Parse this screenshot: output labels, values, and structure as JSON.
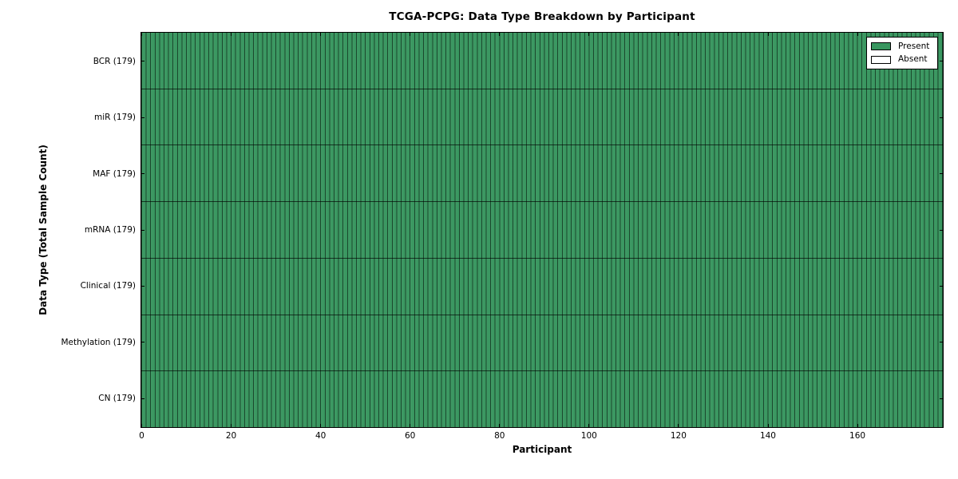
{
  "title": "TCGA-PCPG: Data Type Breakdown by Participant",
  "x_axis": {
    "label": "Participant",
    "ticks": [
      0,
      20,
      40,
      60,
      80,
      100,
      120,
      140,
      160
    ],
    "range": [
      0,
      179
    ]
  },
  "y_axis": {
    "label": "Data Type (Total Sample Count)",
    "categories": [
      "BCR (179)",
      "miR (179)",
      "MAF (179)",
      "mRNA (179)",
      "Clinical (179)",
      "Methylation (179)",
      "CN (179)"
    ]
  },
  "legend": {
    "items": [
      {
        "label": "Present",
        "color": "#38965f"
      },
      {
        "label": "Absent",
        "color": "#ffffff"
      }
    ],
    "position": "upper right"
  },
  "colors": {
    "present": "#38965f",
    "absent": "#ffffff",
    "cell_edge": "#000000",
    "frame": "#000000",
    "background": "#ffffff"
  },
  "chart_data": {
    "type": "heatmap",
    "title": "TCGA-PCPG: Data Type Breakdown by Participant",
    "xlabel": "Participant",
    "ylabel": "Data Type (Total Sample Count)",
    "x_range": [
      0,
      179
    ],
    "x_ticks": [
      0,
      20,
      40,
      60,
      80,
      100,
      120,
      140,
      160
    ],
    "n_participants": 179,
    "grid": "off",
    "legend_entries": [
      "Present",
      "Absent"
    ],
    "legend_position": "upper right",
    "rows": [
      {
        "data_type": "BCR",
        "total_sample_count": 179,
        "present": 179,
        "absent": 0
      },
      {
        "data_type": "miR",
        "total_sample_count": 179,
        "present": 179,
        "absent": 0
      },
      {
        "data_type": "MAF",
        "total_sample_count": 179,
        "present": 179,
        "absent": 0
      },
      {
        "data_type": "mRNA",
        "total_sample_count": 179,
        "present": 179,
        "absent": 0
      },
      {
        "data_type": "Clinical",
        "total_sample_count": 179,
        "present": 179,
        "absent": 0
      },
      {
        "data_type": "Methylation",
        "total_sample_count": 179,
        "present": 179,
        "absent": 0
      },
      {
        "data_type": "CN",
        "total_sample_count": 179,
        "present": 179,
        "absent": 0
      }
    ],
    "cell_values_note": "Every cell is Present (value 1) for all 179 participants across all 7 data types",
    "colors": {
      "present": "#38965f",
      "absent": "#ffffff"
    }
  }
}
